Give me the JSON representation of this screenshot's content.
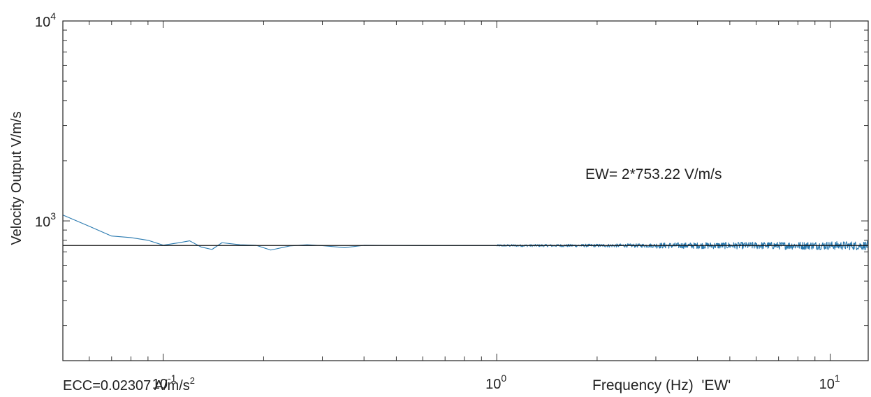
{
  "chart_data": {
    "type": "line",
    "xscale": "log",
    "yscale": "log",
    "xlim": [
      0.05,
      13
    ],
    "ylim": [
      200,
      10000
    ],
    "grid": false,
    "ylabel": "Velocity Output V/m/s",
    "xlabel": "Frequency (Hz)  'EW'",
    "x_ticks": [
      {
        "value": 0.1,
        "base": "10",
        "exp": "-1"
      },
      {
        "value": 1,
        "base": "10",
        "exp": "0"
      },
      {
        "value": 10,
        "base": "10",
        "exp": "1"
      }
    ],
    "y_ticks": [
      {
        "value": 1000,
        "base": "10",
        "exp": "3"
      },
      {
        "value": 10000,
        "base": "10",
        "exp": "4"
      }
    ],
    "annotation": "EW= 2*753.22 V/m/s",
    "footnote": {
      "text": "ECC=0.02307 A/m/s",
      "sup": "2"
    },
    "series": [
      {
        "color": "#2a7ab0",
        "x": [
          0.05,
          0.06,
          0.07,
          0.08,
          0.09,
          0.1,
          0.11,
          0.12,
          0.13,
          0.14,
          0.15,
          0.17,
          0.19,
          0.21,
          0.24,
          0.27,
          0.3,
          0.35,
          0.4,
          0.5,
          0.6,
          0.8,
          1.0
        ],
        "y": [
          1070,
          940,
          840,
          825,
          800,
          756,
          775,
          795,
          740,
          720,
          778,
          760,
          755,
          715,
          750,
          760,
          752,
          735,
          755,
          754,
          752,
          753,
          753
        ]
      },
      {
        "color": "#2a7ab0",
        "noisy_from": 3,
        "noise_amplitude": 0.04,
        "x_range": [
          1.0,
          13
        ],
        "y_level": 753
      },
      {
        "color": "#111111",
        "x": [
          0.05,
          13
        ],
        "y": [
          753.22,
          753.22
        ]
      }
    ]
  }
}
